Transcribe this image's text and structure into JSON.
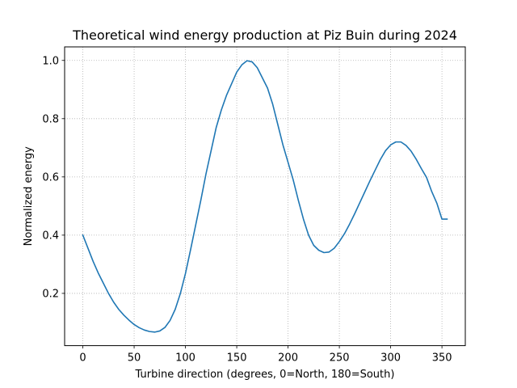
{
  "chart_data": {
    "type": "line",
    "title": "Theoretical wind energy production at Piz Buin during 2024",
    "xlabel": "Turbine direction (degrees, 0=North, 180=South)",
    "ylabel": "Normalized energy",
    "xlim": [
      -17.75,
      372.75
    ],
    "ylim": [
      0.0205,
      1.0465
    ],
    "xticks": [
      0,
      50,
      100,
      150,
      200,
      250,
      300,
      350
    ],
    "yticks": [
      0.2,
      0.4,
      0.6,
      0.8,
      1.0
    ],
    "xtick_labels": [
      "0",
      "50",
      "100",
      "150",
      "200",
      "250",
      "300",
      "350"
    ],
    "ytick_labels": [
      "0.2",
      "0.4",
      "0.6",
      "0.8",
      "1.0"
    ],
    "grid": true,
    "series": [
      {
        "color": "#1f77b4",
        "x": [
          0,
          5,
          10,
          15,
          20,
          25,
          30,
          35,
          40,
          45,
          50,
          55,
          60,
          65,
          70,
          75,
          80,
          85,
          90,
          95,
          100,
          105,
          110,
          115,
          120,
          125,
          130,
          135,
          140,
          145,
          150,
          155,
          160,
          165,
          170,
          175,
          180,
          185,
          190,
          195,
          200,
          205,
          210,
          215,
          220,
          225,
          230,
          235,
          240,
          245,
          250,
          255,
          260,
          265,
          270,
          275,
          280,
          285,
          290,
          295,
          300,
          305,
          310,
          315,
          320,
          325,
          330,
          335,
          340,
          345,
          350,
          355
        ],
        "y": [
          0.4,
          0.355,
          0.31,
          0.27,
          0.235,
          0.2,
          0.17,
          0.145,
          0.125,
          0.108,
          0.093,
          0.082,
          0.074,
          0.069,
          0.067,
          0.071,
          0.083,
          0.107,
          0.145,
          0.199,
          0.268,
          0.35,
          0.435,
          0.52,
          0.61,
          0.69,
          0.77,
          0.83,
          0.88,
          0.92,
          0.96,
          0.985,
          0.999,
          0.995,
          0.975,
          0.94,
          0.905,
          0.85,
          0.78,
          0.71,
          0.65,
          0.59,
          0.52,
          0.455,
          0.4,
          0.365,
          0.348,
          0.34,
          0.342,
          0.355,
          0.378,
          0.405,
          0.438,
          0.474,
          0.512,
          0.55,
          0.588,
          0.624,
          0.66,
          0.69,
          0.71,
          0.72,
          0.72,
          0.708,
          0.688,
          0.66,
          0.628,
          0.598,
          0.55,
          0.51,
          0.455,
          0.455
        ]
      }
    ]
  }
}
